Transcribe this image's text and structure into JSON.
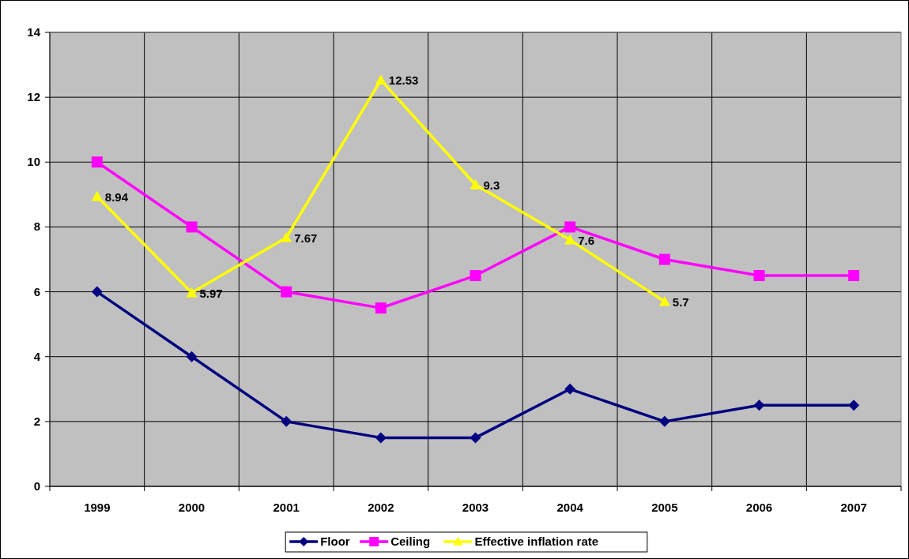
{
  "chart_data": {
    "type": "line",
    "categories": [
      "1999",
      "2000",
      "2001",
      "2002",
      "2003",
      "2004",
      "2005",
      "2006",
      "2007"
    ],
    "ylim": [
      0,
      14
    ],
    "yticks": [
      0,
      2,
      4,
      6,
      8,
      10,
      12,
      14
    ],
    "grid": true,
    "legend": "bottom",
    "series": [
      {
        "name": "Floor",
        "color": "#000080",
        "marker": "diamond",
        "values": [
          6,
          4,
          2,
          1.5,
          1.5,
          3,
          2,
          2.5,
          2.5
        ]
      },
      {
        "name": "Ceiling",
        "color": "#ff00ff",
        "marker": "square",
        "values": [
          10,
          8,
          6,
          5.5,
          6.5,
          8,
          7,
          6.5,
          6.5
        ]
      },
      {
        "name": "Effective inflation rate",
        "color": "#ffff00",
        "marker": "triangle",
        "values": [
          8.94,
          5.97,
          7.67,
          12.53,
          9.3,
          7.6,
          5.7,
          null,
          null
        ],
        "value_labels": [
          "8.94",
          "5.97",
          "7.67",
          "12.53",
          "9.3",
          "7.6",
          "5.7",
          null,
          null
        ]
      }
    ]
  }
}
